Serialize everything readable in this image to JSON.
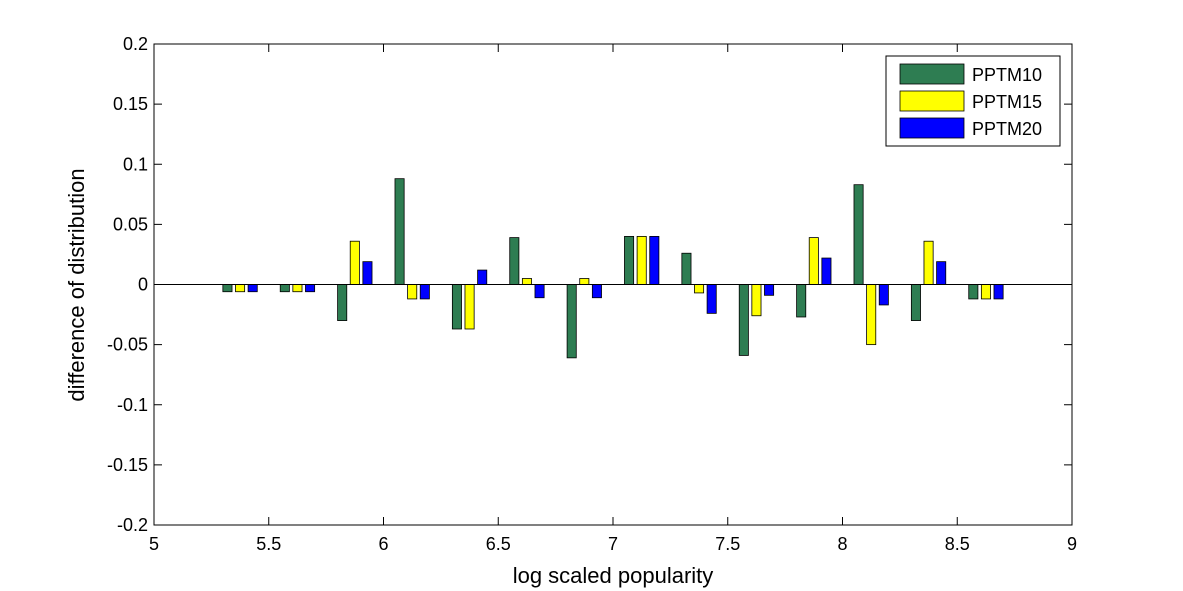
{
  "chart_data": {
    "type": "bar",
    "title": "",
    "xlabel": "log scaled popularity",
    "ylabel": "difference of distribution",
    "xlim": [
      5,
      9
    ],
    "ylim": [
      -0.2,
      0.2
    ],
    "xticks": [
      "5",
      "5.5",
      "6",
      "6.5",
      "7",
      "7.5",
      "8",
      "8.5",
      "9"
    ],
    "yticks": [
      "-0.2",
      "-0.15",
      "-0.1",
      "-0.05",
      "0",
      "0.05",
      "0.1",
      "0.15",
      "0.2"
    ],
    "x": [
      5.375,
      5.625,
      5.875,
      6.125,
      6.375,
      6.625,
      6.875,
      7.125,
      7.375,
      7.625,
      7.875,
      8.125,
      8.375,
      8.625
    ],
    "legend_position": "top-right",
    "grid": false,
    "series": [
      {
        "name": "PPTM10",
        "color": "#2e7d52",
        "values": [
          -0.006,
          -0.006,
          -0.03,
          0.088,
          -0.037,
          0.039,
          -0.061,
          0.04,
          0.026,
          -0.059,
          -0.027,
          0.083,
          -0.03,
          -0.012
        ]
      },
      {
        "name": "PPTM15",
        "color": "#ffff00",
        "values": [
          -0.006,
          -0.006,
          0.036,
          -0.012,
          -0.037,
          0.005,
          0.005,
          0.04,
          -0.007,
          -0.026,
          0.039,
          -0.05,
          0.036,
          -0.012
        ]
      },
      {
        "name": "PPTM20",
        "color": "#0000ff",
        "values": [
          -0.006,
          -0.006,
          0.019,
          -0.012,
          0.012,
          -0.011,
          -0.011,
          0.04,
          -0.024,
          -0.009,
          0.022,
          -0.017,
          0.019,
          -0.012
        ]
      }
    ]
  }
}
